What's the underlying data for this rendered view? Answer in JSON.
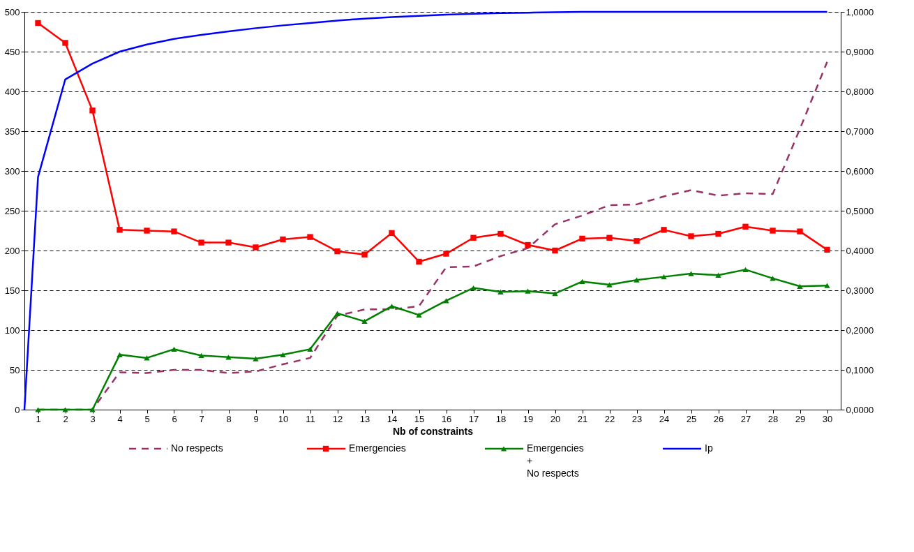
{
  "chart_data": {
    "type": "line",
    "xlabel": "Nb of constraints",
    "x": [
      1,
      2,
      3,
      4,
      5,
      6,
      7,
      8,
      9,
      10,
      11,
      12,
      13,
      14,
      15,
      16,
      17,
      18,
      19,
      20,
      21,
      22,
      23,
      24,
      25,
      26,
      27,
      28,
      29,
      30
    ],
    "xlim": [
      0.5,
      30.5
    ],
    "xticks": [
      1,
      2,
      3,
      4,
      5,
      6,
      7,
      8,
      9,
      10,
      11,
      12,
      13,
      14,
      15,
      16,
      17,
      18,
      19,
      20,
      21,
      22,
      23,
      24,
      25,
      26,
      27,
      28,
      29,
      30
    ],
    "ylim": [
      0,
      500
    ],
    "yticks": [
      0,
      50,
      100,
      150,
      200,
      250,
      300,
      350,
      400,
      450,
      500
    ],
    "y2lim": [
      0,
      1
    ],
    "y2ticks": [
      {
        "value": 0,
        "label": "0,0000"
      },
      {
        "value": 0.1,
        "label": "0,1000"
      },
      {
        "value": 0.2,
        "label": "0,2000"
      },
      {
        "value": 0.3,
        "label": "0,3000"
      },
      {
        "value": 0.4,
        "label": "0,4000"
      },
      {
        "value": 0.5,
        "label": "0,5000"
      },
      {
        "value": 0.6,
        "label": "0,6000"
      },
      {
        "value": 0.7,
        "label": "0,7000"
      },
      {
        "value": 0.8,
        "label": "0,8000"
      },
      {
        "value": 0.9,
        "label": "0,9000"
      },
      {
        "value": 1,
        "label": "1,0000"
      }
    ],
    "grid": "y",
    "legend": "bottom",
    "series": [
      {
        "name": "No respects",
        "color": "#993366",
        "line_style": "dashed",
        "marker": "none",
        "values": [
          0,
          0,
          0,
          47,
          46,
          50,
          50,
          46,
          48,
          57,
          65,
          118,
          126,
          126,
          130,
          179,
          180,
          193,
          203,
          233,
          244,
          257,
          258,
          268,
          276,
          269,
          272,
          271,
          353,
          437
        ]
      },
      {
        "name": "Emergencies",
        "color": "#ff0000",
        "line_style": "solid",
        "marker": "square",
        "values": [
          486,
          461,
          376,
          226,
          225,
          224,
          210,
          210,
          204,
          214,
          217,
          199,
          195,
          222,
          186,
          196,
          216,
          221,
          207,
          200,
          215,
          216,
          212,
          226,
          218,
          221,
          230,
          225,
          224,
          201
        ]
      },
      {
        "name": "Emergencies\n+\nNo respects",
        "color": "#008000",
        "line_style": "solid",
        "marker": "triangle",
        "values": [
          0,
          0,
          0,
          69,
          65,
          76,
          68,
          66,
          64,
          69,
          76,
          121,
          111,
          130,
          119,
          137,
          153,
          148,
          149,
          146,
          161,
          157,
          163,
          167,
          171,
          169,
          176,
          165,
          155,
          156
        ]
      },
      {
        "name": "Ip",
        "color": "#0000ff",
        "line_style": "solid",
        "marker": "none",
        "axis": "y2",
        "x": [
          0.5,
          1,
          2,
          3,
          4,
          5,
          6,
          7,
          8,
          9,
          10,
          11,
          12,
          13,
          14,
          15,
          16,
          17,
          18,
          19,
          20,
          21,
          22,
          23,
          24,
          25,
          26,
          27,
          28,
          29,
          30
        ],
        "values": [
          0,
          0.585,
          0.83,
          0.87,
          0.9,
          0.918,
          0.932,
          0.942,
          0.951,
          0.959,
          0.966,
          0.972,
          0.978,
          0.983,
          0.987,
          0.99,
          0.993,
          0.995,
          0.997,
          0.998,
          0.999,
          1,
          1,
          1,
          1,
          1,
          1,
          1,
          1,
          1,
          1
        ]
      }
    ]
  }
}
